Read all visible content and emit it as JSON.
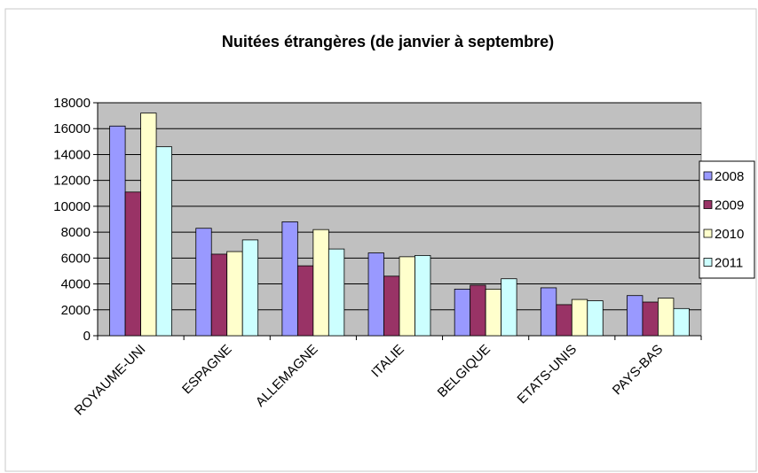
{
  "chart_data": {
    "type": "bar",
    "title": "Nuitées étrangères (de janvier à septembre)",
    "categories": [
      "ROYAUME-UNI",
      "ESPAGNE",
      "ALLEMAGNE",
      "ITALIE",
      "BELGIQUE",
      "ETATS-UNIS",
      "PAYS-BAS"
    ],
    "series": [
      {
        "name": "2008",
        "color": "#9999ff",
        "values": [
          16200,
          8300,
          8800,
          6400,
          3600,
          3700,
          3100
        ]
      },
      {
        "name": "2009",
        "color": "#993366",
        "values": [
          11100,
          6300,
          5400,
          4600,
          3900,
          2400,
          2600
        ]
      },
      {
        "name": "2010",
        "color": "#ffffcc",
        "values": [
          17200,
          6500,
          8200,
          6100,
          3600,
          2800,
          2900
        ]
      },
      {
        "name": "2011",
        "color": "#ccffff",
        "values": [
          14600,
          7400,
          6700,
          6200,
          4400,
          2700,
          2100
        ]
      }
    ],
    "ylim": [
      0,
      18000
    ],
    "yticks": [
      0,
      2000,
      4000,
      6000,
      8000,
      10000,
      12000,
      14000,
      16000,
      18000
    ],
    "grid": true,
    "legend": "right"
  }
}
